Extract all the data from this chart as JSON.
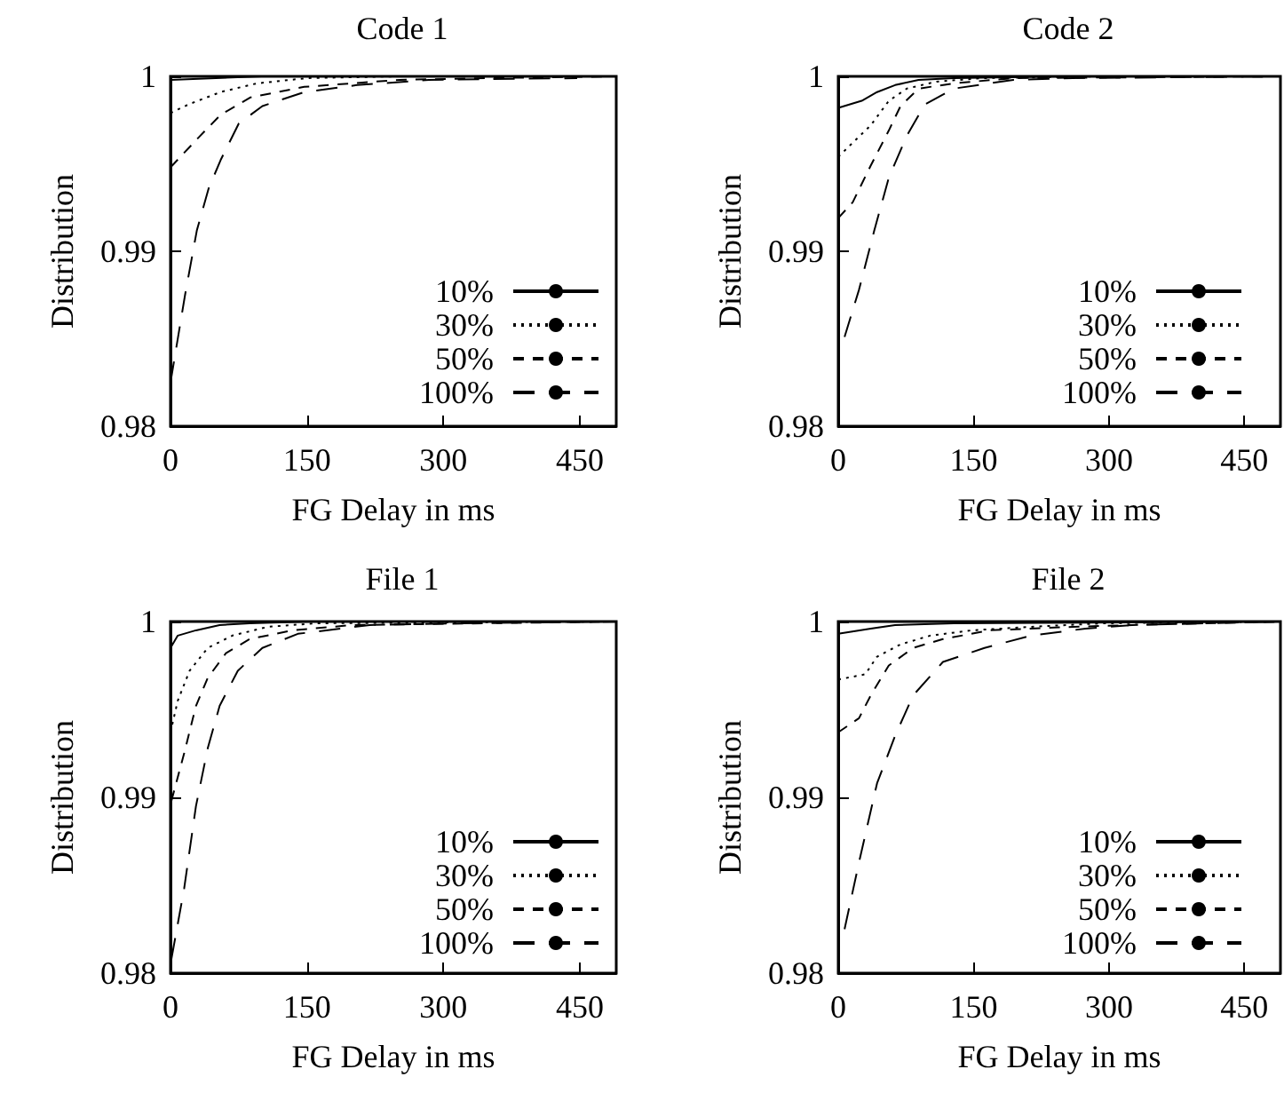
{
  "chart_data": [
    {
      "type": "line",
      "title": "Code 1",
      "xlabel": "FG Delay in ms",
      "ylabel": "Distribution",
      "xlim": [
        0,
        490
      ],
      "xticks": [
        0,
        150,
        300,
        450
      ],
      "ylim": [
        0.98,
        1
      ],
      "yticks": [
        0.98,
        0.99,
        1
      ],
      "grid": false,
      "legend": "bottom right",
      "series": [
        {
          "name": "10%",
          "color": "#000000",
          "line_style": "solid",
          "x": [
            0,
            50,
            100,
            200,
            490
          ],
          "values": [
            0.9998,
            0.9999,
            1,
            1,
            1
          ]
        },
        {
          "name": "30%",
          "color": "#000000",
          "line_style": "dotted",
          "x": [
            0,
            20,
            55,
            95,
            150,
            250,
            490
          ],
          "values": [
            0.9979,
            0.9984,
            0.9991,
            0.9996,
            0.9999,
            1,
            1
          ]
        },
        {
          "name": "50%",
          "color": "#000000",
          "line_style": "dashed",
          "x": [
            0,
            29,
            55,
            88,
            147,
            252,
            350,
            490
          ],
          "values": [
            0.9948,
            0.9964,
            0.9978,
            0.9988,
            0.9994,
            0.9998,
            0.9999,
            1
          ]
        },
        {
          "name": "100%",
          "color": "#000000",
          "line_style": "dashed",
          "x": [
            0,
            16,
            29,
            42,
            55,
            75,
            101,
            147,
            205,
            284,
            447
          ],
          "values": [
            0.9825,
            0.9875,
            0.9912,
            0.9936,
            0.9952,
            0.9973,
            0.9983,
            0.9991,
            0.9995,
            0.9998,
            0.9999
          ]
        }
      ]
    },
    {
      "type": "line",
      "title": "Code 2",
      "xlabel": "FG Delay in ms",
      "ylabel": "Distribution",
      "xlim": [
        0,
        490
      ],
      "xticks": [
        0,
        150,
        300,
        450
      ],
      "ylim": [
        0.98,
        1
      ],
      "yticks": [
        0.98,
        0.99,
        1
      ],
      "grid": false,
      "legend": "bottom right",
      "series": [
        {
          "name": "10%",
          "color": "#000000",
          "line_style": "solid",
          "x": [
            0,
            26,
            43,
            63,
            89,
            128,
            250,
            490
          ],
          "values": [
            0.9982,
            0.9986,
            0.9991,
            0.9995,
            0.9998,
            0.9999,
            1,
            1
          ]
        },
        {
          "name": "30%",
          "color": "#000000",
          "line_style": "dotted",
          "x": [
            0,
            16,
            36,
            56,
            76,
            109,
            161,
            300,
            490
          ],
          "values": [
            0.9954,
            0.9962,
            0.9972,
            0.9986,
            0.9993,
            0.9997,
            0.9999,
            1,
            1
          ]
        },
        {
          "name": "50%",
          "color": "#000000",
          "line_style": "dashed",
          "x": [
            0,
            16,
            36,
            56,
            69,
            89,
            128,
            194,
            490
          ],
          "values": [
            0.9919,
            0.9928,
            0.9949,
            0.9969,
            0.9983,
            0.9993,
            0.9996,
            0.9999,
            1
          ]
        },
        {
          "name": "100%",
          "color": "#000000",
          "line_style": "dashed",
          "x": [
            7,
            23,
            40,
            56,
            76,
            96,
            128,
            194,
            260,
            490
          ],
          "values": [
            0.9851,
            0.9878,
            0.9912,
            0.9942,
            0.9966,
            0.9984,
            0.9993,
            0.9998,
            0.9999,
            1
          ]
        }
      ]
    },
    {
      "type": "line",
      "title": "File 1",
      "xlabel": "FG Delay in ms",
      "ylabel": "Distribution",
      "xlim": [
        0,
        490
      ],
      "xticks": [
        0,
        150,
        300,
        450
      ],
      "ylim": [
        0.98,
        1
      ],
      "yticks": [
        0.98,
        0.99,
        1
      ],
      "grid": false,
      "legend": "bottom right",
      "series": [
        {
          "name": "10%",
          "color": "#000000",
          "line_style": "solid",
          "x": [
            0,
            8,
            28,
            54,
            87,
            153,
            490
          ],
          "values": [
            0.9985,
            0.9992,
            0.9995,
            0.9998,
            0.9999,
            1,
            1
          ]
        },
        {
          "name": "30%",
          "color": "#000000",
          "line_style": "dotted",
          "x": [
            0,
            8,
            21,
            41,
            68,
            107,
            160,
            490
          ],
          "values": [
            0.9937,
            0.9955,
            0.9972,
            0.9985,
            0.9992,
            0.9997,
            0.9999,
            1
          ]
        },
        {
          "name": "50%",
          "color": "#000000",
          "line_style": "dashed",
          "x": [
            1,
            15,
            28,
            41,
            61,
            87,
            134,
            200,
            490
          ],
          "values": [
            0.9898,
            0.9925,
            0.9952,
            0.9968,
            0.9982,
            0.999,
            0.9995,
            0.9998,
            1
          ]
        },
        {
          "name": "100%",
          "color": "#000000",
          "line_style": "dashed",
          "x": [
            1,
            15,
            28,
            41,
            54,
            74,
            101,
            140,
            219,
            318,
            490
          ],
          "values": [
            0.9808,
            0.9848,
            0.9895,
            0.9928,
            0.9952,
            0.9972,
            0.9985,
            0.9993,
            0.9998,
            0.9999,
            1
          ]
        }
      ]
    },
    {
      "type": "line",
      "title": "File 2",
      "xlabel": "FG Delay in ms",
      "ylabel": "Distribution",
      "xlim": [
        0,
        490
      ],
      "xticks": [
        0,
        150,
        300,
        450
      ],
      "ylim": [
        0.98,
        1
      ],
      "yticks": [
        0.98,
        0.99,
        1
      ],
      "grid": false,
      "legend": "bottom right",
      "series": [
        {
          "name": "10%",
          "color": "#000000",
          "line_style": "solid",
          "x": [
            0,
            36,
            63,
            128,
            490
          ],
          "values": [
            0.9993,
            0.9996,
            0.9998,
            0.9999,
            1
          ]
        },
        {
          "name": "30%",
          "color": "#000000",
          "line_style": "dotted",
          "x": [
            0,
            30,
            43,
            69,
            102,
            148,
            214,
            293,
            490
          ],
          "values": [
            0.9967,
            0.997,
            0.998,
            0.9987,
            0.9992,
            0.9995,
            0.9997,
            0.9999,
            1
          ]
        },
        {
          "name": "50%",
          "color": "#000000",
          "line_style": "dashed",
          "x": [
            0,
            23,
            36,
            56,
            83,
            116,
            168,
            260,
            326,
            490
          ],
          "values": [
            0.9937,
            0.9945,
            0.9958,
            0.9975,
            0.9985,
            0.999,
            0.9995,
            0.9997,
            0.9998,
            1
          ]
        },
        {
          "name": "100%",
          "color": "#000000",
          "line_style": "dashed",
          "x": [
            7,
            23,
            43,
            63,
            83,
            116,
            162,
            214,
            274,
            326,
            490
          ],
          "values": [
            0.9825,
            0.9863,
            0.9908,
            0.9935,
            0.9958,
            0.9977,
            0.9985,
            0.9992,
            0.9996,
            0.9998,
            1
          ]
        }
      ]
    }
  ]
}
